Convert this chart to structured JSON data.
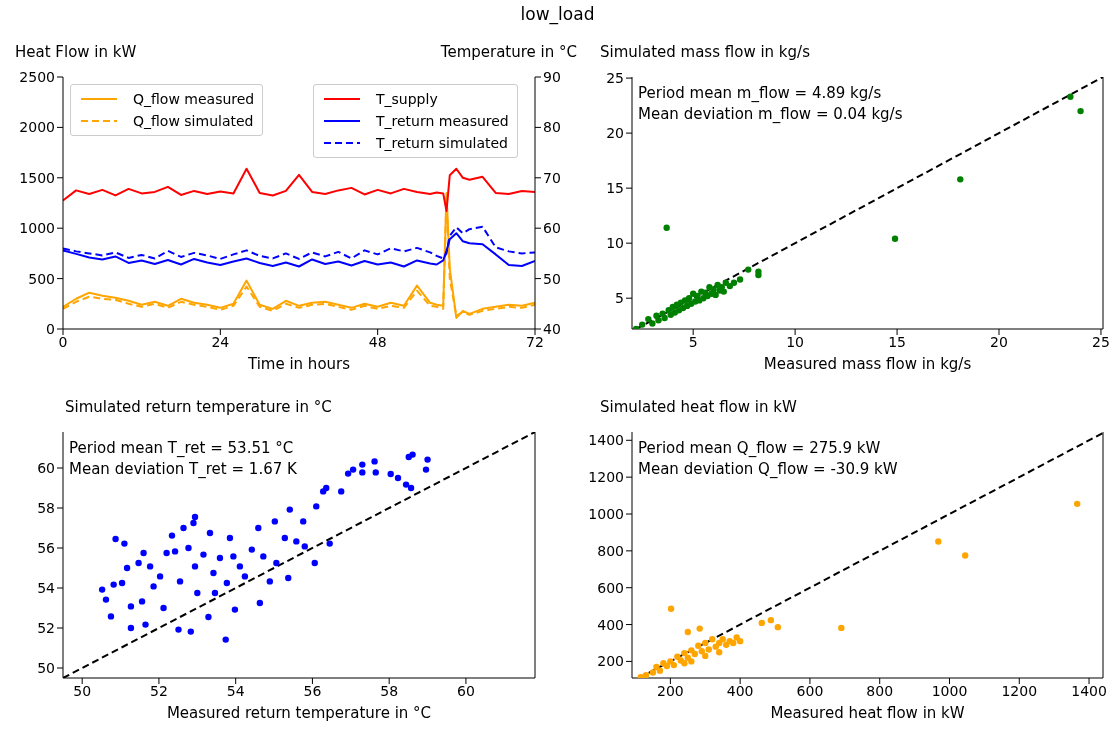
{
  "chart_data": [
    {
      "type": "line",
      "title": "low_load",
      "xlabel": "Time in hours",
      "ylabel": "Heat Flow in kW",
      "y2label": "Temperature in °C",
      "x": [
        0,
        2,
        4,
        6,
        8,
        10,
        12,
        14,
        16,
        18,
        20,
        22,
        24,
        26,
        28,
        30,
        32,
        34,
        36,
        38,
        40,
        42,
        44,
        46,
        48,
        50,
        52,
        54,
        56,
        57,
        58,
        58.5,
        59,
        60,
        61,
        62,
        64,
        66,
        68,
        70,
        72
      ],
      "xlim": [
        0,
        72
      ],
      "xticks": [
        0,
        24,
        48,
        72
      ],
      "ylim": [
        0,
        2500
      ],
      "yticks": [
        0,
        500,
        1000,
        1500,
        2000,
        2500
      ],
      "y2lim": [
        40,
        90
      ],
      "y2ticks": [
        40,
        50,
        60,
        70,
        80,
        90
      ],
      "legend": "top",
      "series": [
        {
          "name": "Q_flow measured",
          "color": "#ffa500",
          "line_style": "solid",
          "values": [
            220,
            300,
            360,
            330,
            310,
            280,
            240,
            270,
            230,
            300,
            260,
            240,
            210,
            250,
            480,
            240,
            200,
            280,
            230,
            260,
            270,
            240,
            210,
            250,
            220,
            260,
            230,
            430,
            260,
            240,
            230,
            1350,
            600,
            110,
            180,
            150,
            200,
            220,
            240,
            230,
            260
          ]
        },
        {
          "name": "Q_flow simulated",
          "color": "#ffa500",
          "line_style": "dashed",
          "values": [
            200,
            270,
            320,
            300,
            290,
            250,
            220,
            250,
            210,
            270,
            240,
            220,
            190,
            230,
            420,
            220,
            180,
            250,
            210,
            240,
            250,
            220,
            190,
            230,
            200,
            230,
            210,
            380,
            230,
            220,
            200,
            1300,
            500,
            130,
            170,
            140,
            180,
            200,
            220,
            210,
            240
          ]
        },
        {
          "name": "T_supply",
          "color": "#ff0000",
          "axis": "y2",
          "line_style": "solid",
          "values": [
            65.5,
            67.5,
            66.8,
            67.6,
            66.5,
            67.8,
            66.9,
            67.2,
            68.2,
            66.6,
            67.4,
            66.8,
            67.3,
            66.9,
            71.8,
            67.0,
            66.5,
            67.4,
            70.6,
            67.2,
            66.8,
            67.5,
            68.0,
            66.7,
            67.6,
            66.9,
            67.8,
            67.2,
            66.8,
            67.1,
            66.9,
            63.4,
            70.5,
            71.8,
            70.0,
            69.6,
            70.2,
            67.0,
            66.8,
            67.4,
            67.2
          ]
        },
        {
          "name": "T_return measured",
          "color": "#0000ff",
          "axis": "y2",
          "line_style": "solid",
          "values": [
            55.6,
            54.9,
            54.2,
            53.8,
            54.4,
            53.1,
            53.6,
            52.9,
            53.7,
            52.8,
            53.9,
            53.2,
            52.7,
            53.4,
            54.0,
            53.1,
            52.5,
            53.2,
            52.4,
            53.8,
            52.9,
            53.4,
            52.6,
            53.5,
            52.8,
            53.2,
            52.4,
            53.6,
            53.0,
            52.8,
            53.6,
            55.5,
            57.8,
            59.0,
            57.4,
            57.0,
            56.8,
            54.8,
            52.7,
            52.5,
            53.5
          ]
        },
        {
          "name": "T_return simulated",
          "color": "#0000ff",
          "axis": "y2",
          "line_style": "dashed",
          "values": [
            56.0,
            55.4,
            55.0,
            54.6,
            55.2,
            54.1,
            54.7,
            54.0,
            55.5,
            54.3,
            55.1,
            54.6,
            53.9,
            54.8,
            55.6,
            54.5,
            54.0,
            55.0,
            53.9,
            55.2,
            54.4,
            55.3,
            54.0,
            55.6,
            54.8,
            56.0,
            55.4,
            56.1,
            55.2,
            54.5,
            54.0,
            55.0,
            58.5,
            60.2,
            59.0,
            59.8,
            60.3,
            56.2,
            55.4,
            55.0,
            55.2
          ]
        }
      ]
    },
    {
      "type": "scatter",
      "xlabel": "Measured mass flow in kg/s",
      "ylabel": "Simulated mass flow in kg/s",
      "annotations": [
        "Period mean m_flow = 4.89 kg/s",
        "Mean deviation m_flow = 0.04 kg/s"
      ],
      "xlim": [
        2.0,
        25.1
      ],
      "xticks": [
        5,
        10,
        15,
        20,
        25
      ],
      "ylim": [
        2.2,
        25.1
      ],
      "yticks": [
        5,
        10,
        15,
        20,
        25
      ],
      "series": [
        {
          "color": "#008000",
          "marker": "circle",
          "x": [
            2.2,
            2.5,
            2.8,
            3.0,
            3.2,
            3.3,
            3.5,
            3.6,
            3.8,
            3.9,
            4.0,
            4.1,
            4.2,
            4.3,
            4.4,
            4.5,
            4.6,
            4.7,
            4.8,
            4.9,
            5.0,
            5.1,
            5.2,
            5.3,
            5.4,
            5.5,
            5.6,
            5.7,
            5.8,
            5.9,
            6.0,
            6.1,
            6.2,
            6.3,
            6.4,
            6.5,
            6.6,
            6.8,
            7.0,
            7.3,
            7.7,
            8.2,
            8.2,
            3.7,
            14.9,
            18.1,
            23.5,
            24.0
          ],
          "values": [
            2.2,
            2.6,
            3.1,
            2.7,
            3.4,
            3.0,
            3.6,
            3.2,
            3.9,
            3.5,
            4.2,
            3.7,
            4.4,
            3.9,
            4.6,
            4.1,
            4.8,
            4.3,
            5.0,
            4.5,
            5.4,
            4.7,
            5.2,
            4.8,
            5.6,
            5.0,
            5.5,
            5.2,
            6.0,
            5.4,
            5.8,
            5.3,
            6.2,
            5.7,
            6.0,
            5.6,
            6.4,
            6.1,
            6.4,
            6.7,
            7.6,
            7.4,
            7.1,
            11.4,
            10.4,
            15.8,
            23.3,
            22.0
          ]
        },
        {
          "type": "line",
          "color": "#000000",
          "line_style": "dashed",
          "x": [
            2.2,
            25.1
          ],
          "values": [
            2.2,
            25.1
          ]
        }
      ]
    },
    {
      "type": "scatter",
      "xlabel": "Measured return temperature in °C",
      "ylabel": "Simulated return temperature in °C",
      "annotations": [
        "Period mean T_ret = 53.51 °C",
        "Mean deviation T_ret = 1.67 K"
      ],
      "xlim": [
        49.5,
        61.8
      ],
      "xticks": [
        50,
        52,
        54,
        56,
        58,
        60
      ],
      "ylim": [
        49.5,
        61.8
      ],
      "yticks": [
        50,
        52,
        54,
        56,
        58,
        60
      ],
      "series": [
        {
          "color": "#0000ff",
          "marker": "circle",
          "x": [
            50.52,
            50.62,
            50.75,
            50.87,
            51.1,
            50.82,
            51.04,
            51.17,
            51.27,
            51.27,
            51.47,
            51.6,
            51.65,
            51.56,
            51.77,
            51.86,
            52.03,
            52.12,
            52.2,
            52.34,
            52.42,
            52.51,
            52.55,
            52.64,
            52.77,
            52.83,
            52.9,
            52.94,
            52.94,
            53.0,
            53.16,
            53.29,
            53.33,
            53.42,
            53.46,
            53.59,
            53.74,
            53.77,
            53.85,
            53.94,
            53.98,
            54.11,
            54.24,
            54.42,
            54.59,
            54.63,
            54.72,
            54.89,
            55.02,
            55.06,
            55.28,
            55.37,
            55.41,
            55.58,
            55.76,
            55.8,
            56.06,
            56.1,
            56.28,
            56.36,
            56.45,
            56.75,
            56.93,
            57.06,
            57.3,
            57.3,
            57.62,
            57.65,
            58.04,
            58.23,
            58.44,
            58.57,
            58.51,
            58.61,
            58.96,
            59.0
          ],
          "values": [
            53.92,
            53.42,
            52.58,
            56.45,
            56.22,
            54.17,
            54.25,
            55.0,
            53.08,
            52.0,
            55.25,
            55.75,
            52.17,
            53.33,
            55.08,
            54.08,
            54.58,
            53.0,
            55.75,
            56.62,
            55.83,
            51.92,
            54.33,
            57.0,
            56.0,
            51.82,
            57.25,
            57.55,
            55.08,
            53.75,
            55.67,
            52.55,
            56.75,
            54.75,
            53.75,
            55.5,
            51.42,
            54.25,
            56.5,
            55.58,
            52.92,
            55.08,
            54.58,
            55.92,
            57.0,
            53.25,
            55.58,
            54.33,
            57.33,
            55.25,
            56.5,
            54.5,
            57.92,
            56.33,
            57.33,
            56.08,
            55.25,
            58.08,
            58.83,
            59.0,
            56.22,
            58.83,
            59.72,
            59.92,
            60.17,
            59.78,
            60.33,
            59.78,
            59.7,
            59.5,
            59.17,
            59.0,
            60.55,
            60.67,
            59.92,
            60.42
          ]
        },
        {
          "type": "line",
          "color": "#000000",
          "line_style": "dashed",
          "x": [
            49.5,
            61.8
          ],
          "values": [
            49.5,
            61.8
          ]
        }
      ]
    },
    {
      "type": "scatter",
      "xlabel": "Measured heat flow in kW",
      "ylabel": "Simulated heat flow in kW",
      "annotations": [
        "Period mean Q_flow = 275.9 kW",
        "Mean deviation Q_flow = -30.9 kW"
      ],
      "xlim": [
        90,
        1440
      ],
      "xticks": [
        200,
        400,
        600,
        800,
        1000,
        1200,
        1400
      ],
      "ylim": [
        110,
        1445
      ],
      "yticks": [
        200,
        400,
        600,
        800,
        1000,
        1200,
        1400
      ],
      "series": [
        {
          "color": "#ffa500",
          "marker": "circle",
          "x": [
            115,
            130,
            150,
            160,
            170,
            180,
            190,
            200,
            210,
            220,
            230,
            240,
            250,
            260,
            270,
            280,
            290,
            300,
            310,
            320,
            330,
            340,
            350,
            360,
            370,
            380,
            390,
            400,
            260,
            300,
            340,
            240,
            284,
            250,
            202,
            462,
            488,
            508,
            690,
            968,
            1045,
            1366
          ],
          "values": [
            115,
            125,
            140,
            170,
            150,
            190,
            175,
            200,
            180,
            225,
            205,
            245,
            220,
            260,
            240,
            285,
            255,
            300,
            265,
            320,
            280,
            300,
            320,
            290,
            310,
            300,
            330,
            310,
            200,
            230,
            250,
            190,
            378,
            360,
            486,
            409,
            424,
            386,
            382,
            851,
            775,
            1055
          ]
        },
        {
          "type": "line",
          "color": "#000000",
          "line_style": "dashed",
          "x": [
            110,
            1440
          ],
          "values": [
            110,
            1440
          ]
        }
      ]
    }
  ]
}
